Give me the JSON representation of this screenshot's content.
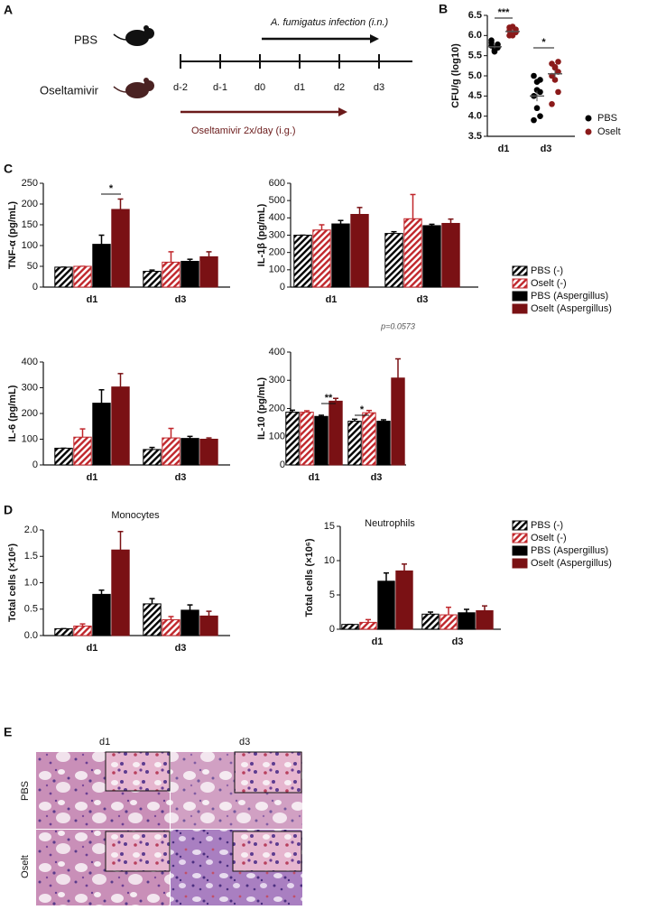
{
  "panel_labels": [
    "A",
    "B",
    "C",
    "D",
    "E"
  ],
  "panel_a": {
    "groups": [
      "PBS",
      "Oseltamivir"
    ],
    "timeline": [
      "d-2",
      "d-1",
      "d0",
      "d1",
      "d2",
      "d3"
    ],
    "infection": "A. fumigatus infection (i.n.)",
    "treatment": "Oseltamivir 2x/day (i.g.)"
  },
  "chart_data": [
    {
      "type": "dot",
      "y_label": "CFU/g (log10)",
      "categories": [
        "d1",
        "d3"
      ],
      "ylim": [
        3.5,
        6.5
      ],
      "yticks": [
        3.5,
        {
          "value": 4,
          "label": "4.0"
        },
        4.5,
        {
          "value": 5,
          "label": "5.0"
        },
        5.5,
        {
          "value": 6,
          "label": "6.0"
        },
        6.5
      ],
      "annotations": [
        "***",
        "*"
      ],
      "legend": "right",
      "series": [
        {
          "name": "PBS",
          "color": "#000000",
          "values": [
            [
              5.75,
              5.6,
              5.7,
              5.82,
              5.65,
              5.72,
              5.88,
              5.62,
              5.78
            ],
            [
              5.0,
              4.85,
              4.6,
              4.5,
              4.2,
              4.0,
              3.9,
              4.65,
              4.9
            ]
          ],
          "means": [
            5.72,
            4.5
          ],
          "errors": [
            0.04,
            0.13
          ]
        },
        {
          "name": "Oselt",
          "color": "#8b1a1a",
          "values": [
            [
              6.12,
              6.0,
              6.15,
              6.2,
              6.05,
              6.1,
              6.0,
              6.22,
              6.08
            ],
            [
              5.3,
              5.2,
              5.1,
              5.0,
              4.9,
              4.6,
              4.3,
              5.22,
              5.35
            ]
          ],
          "means": [
            6.1,
            5.05
          ],
          "errors": [
            0.03,
            0.1
          ]
        }
      ]
    },
    {
      "type": "bar",
      "y_label": "TNF-α (pg/mL)",
      "categories": [
        "d1",
        "d3"
      ],
      "ylim": [
        0,
        250
      ],
      "yticks": [
        0,
        50,
        100,
        150,
        200,
        250
      ],
      "annotations": [
        "*"
      ],
      "series": [
        {
          "name": "PBS (-)",
          "color": "#000000",
          "hatch": true,
          "values": [
            48,
            38
          ],
          "errors": [
            0,
            3
          ]
        },
        {
          "name": "Oselt (-)",
          "color": "#c0262b",
          "hatch": true,
          "values": [
            50,
            60
          ],
          "errors": [
            0,
            25
          ]
        },
        {
          "name": "PBS (Aspergillus)",
          "color": "#000000",
          "hatch": false,
          "values": [
            103,
            62
          ],
          "errors": [
            22,
            5
          ]
        },
        {
          "name": "Oselt (Aspergillus)",
          "color": "#7a1114",
          "hatch": false,
          "values": [
            187,
            73
          ],
          "errors": [
            25,
            12
          ]
        }
      ]
    },
    {
      "type": "bar",
      "y_label": "IL-1β (pg/mL)",
      "categories": [
        "d1",
        "d3"
      ],
      "ylim": [
        0,
        600
      ],
      "yticks": [
        0,
        100,
        200,
        300,
        400,
        500,
        600
      ],
      "legend": "right",
      "series": [
        {
          "name": "PBS (-)",
          "color": "#000000",
          "hatch": true,
          "values": [
            300,
            310
          ],
          "errors": [
            0,
            10
          ]
        },
        {
          "name": "Oselt (-)",
          "color": "#c0262b",
          "hatch": true,
          "values": [
            330,
            395
          ],
          "errors": [
            30,
            140
          ]
        },
        {
          "name": "PBS (Aspergillus)",
          "color": "#000000",
          "hatch": false,
          "values": [
            365,
            355
          ],
          "errors": [
            20,
            8
          ]
        },
        {
          "name": "Oselt (Aspergillus)",
          "color": "#7a1114",
          "hatch": false,
          "values": [
            420,
            368
          ],
          "errors": [
            40,
            25
          ]
        }
      ]
    },
    {
      "type": "bar",
      "y_label": "IL-6 (pg/mL)",
      "categories": [
        "d1",
        "d3"
      ],
      "ylim": [
        0,
        400
      ],
      "yticks": [
        0,
        100,
        200,
        300,
        400
      ],
      "series": [
        {
          "name": "PBS (-)",
          "color": "#000000",
          "hatch": true,
          "values": [
            65,
            60
          ],
          "errors": [
            0,
            8
          ]
        },
        {
          "name": "Oselt (-)",
          "color": "#c0262b",
          "hatch": true,
          "values": [
            108,
            105
          ],
          "errors": [
            32,
            37
          ]
        },
        {
          "name": "PBS (Aspergillus)",
          "color": "#000000",
          "hatch": false,
          "values": [
            240,
            103
          ],
          "errors": [
            52,
            8
          ]
        },
        {
          "name": "Oselt (Aspergillus)",
          "color": "#7a1114",
          "hatch": false,
          "values": [
            303,
            100
          ],
          "errors": [
            52,
            5
          ]
        }
      ]
    },
    {
      "type": "bar",
      "y_label": "IL-10 (pg/mL)",
      "categories": [
        "d1",
        "d3"
      ],
      "ylim": [
        0,
        400
      ],
      "yticks": [
        0,
        100,
        200,
        300,
        400
      ],
      "annotations": [
        "**",
        "*",
        "p=0.0573"
      ],
      "series": [
        {
          "name": "PBS (-)",
          "color": "#000000",
          "hatch": true,
          "values": [
            187,
            155
          ],
          "errors": [
            7,
            7
          ]
        },
        {
          "name": "Oselt (-)",
          "color": "#c0262b",
          "hatch": true,
          "values": [
            187,
            185
          ],
          "errors": [
            5,
            8
          ]
        },
        {
          "name": "PBS (Aspergillus)",
          "color": "#000000",
          "hatch": false,
          "values": [
            172,
            155
          ],
          "errors": [
            4,
            5
          ]
        },
        {
          "name": "Oselt (Aspergillus)",
          "color": "#7a1114",
          "hatch": false,
          "values": [
            226,
            308
          ],
          "errors": [
            10,
            68
          ]
        }
      ]
    },
    {
      "type": "bar",
      "title": "Monocytes",
      "y_label": "Total cells (×10⁶)",
      "categories": [
        "d1",
        "d3"
      ],
      "ylim": [
        0,
        2
      ],
      "yticks": [
        {
          "value": 0,
          "label": "0.0"
        },
        0.5,
        {
          "value": 1,
          "label": "1.0"
        },
        1.5,
        {
          "value": 2,
          "label": "2.0"
        }
      ],
      "series": [
        {
          "name": "PBS (-)",
          "color": "#000000",
          "hatch": true,
          "values": [
            0.13,
            0.6
          ],
          "errors": [
            0,
            0.1
          ]
        },
        {
          "name": "Oselt (-)",
          "color": "#c0262b",
          "hatch": true,
          "values": [
            0.18,
            0.3
          ],
          "errors": [
            0.04,
            0.06
          ]
        },
        {
          "name": "PBS (Aspergillus)",
          "color": "#000000",
          "hatch": false,
          "values": [
            0.78,
            0.48
          ],
          "errors": [
            0.08,
            0.1
          ]
        },
        {
          "name": "Oselt (Aspergillus)",
          "color": "#7a1114",
          "hatch": false,
          "values": [
            1.62,
            0.37
          ],
          "errors": [
            0.35,
            0.09
          ]
        }
      ]
    },
    {
      "type": "bar",
      "title": "Neutrophils",
      "y_label": "Total cells (×10⁶)",
      "categories": [
        "d1",
        "d3"
      ],
      "ylim": [
        0,
        15
      ],
      "yticks": [
        0,
        5,
        10,
        15
      ],
      "legend": "right",
      "series": [
        {
          "name": "PBS (-)",
          "color": "#000000",
          "hatch": true,
          "values": [
            0.7,
            2.2
          ],
          "errors": [
            0,
            0.3
          ]
        },
        {
          "name": "Oselt (-)",
          "color": "#c0262b",
          "hatch": true,
          "values": [
            1.0,
            2.1
          ],
          "errors": [
            0.4,
            1.1
          ]
        },
        {
          "name": "PBS (Aspergillus)",
          "color": "#000000",
          "hatch": false,
          "values": [
            7.0,
            2.4
          ],
          "errors": [
            1.2,
            0.5
          ]
        },
        {
          "name": "Oselt (Aspergillus)",
          "color": "#7a1114",
          "hatch": false,
          "values": [
            8.5,
            2.7
          ],
          "errors": [
            1.0,
            0.7
          ]
        }
      ]
    }
  ],
  "panel_e": {
    "columns": [
      "d1",
      "d3"
    ],
    "rows": [
      "PBS",
      "Oselt"
    ]
  }
}
